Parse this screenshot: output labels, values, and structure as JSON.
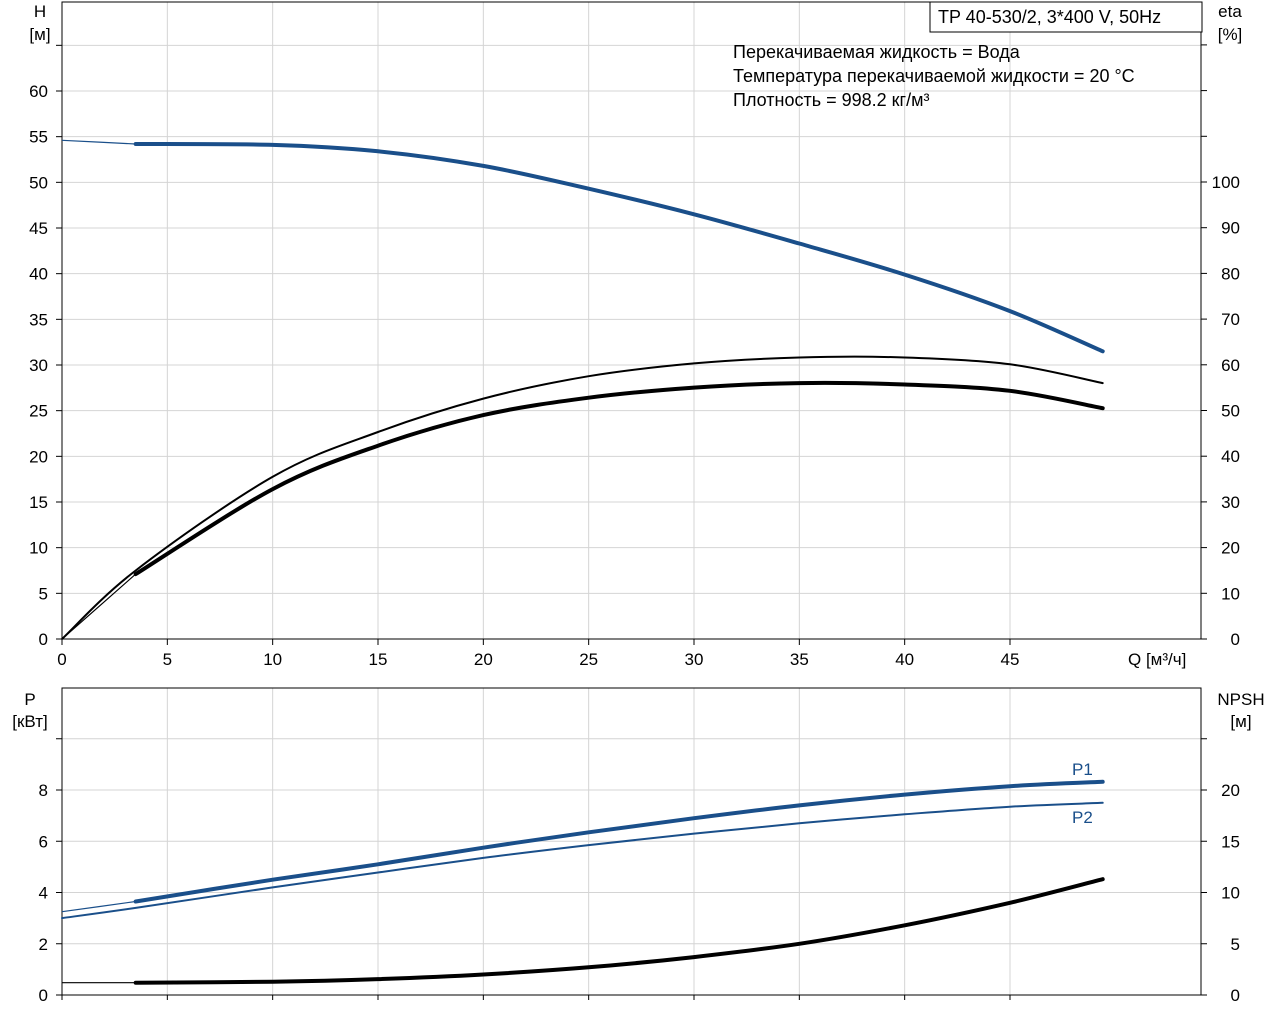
{
  "chart_data": [
    {
      "type": "line",
      "title": "TP 40-530/2, 3*400 V, 50Hz",
      "notes": [
        "Перекачиваемая жидкость = Вода",
        "Температура перекачиваемой жидкости = 20 °C",
        "Плотность = 998.2 кг/м³"
      ],
      "xlabel": "Q [м³/ч]",
      "ylabel_left_name": "H",
      "ylabel_left_unit": "[м]",
      "ylabel_right_name": "eta",
      "ylabel_right_unit": "[%]",
      "xlim": [
        0,
        50
      ],
      "ylim_left": [
        0,
        70
      ],
      "ylim_right": [
        0,
        140
      ],
      "x_ticks": [
        "0",
        "5",
        "10",
        "15",
        "20",
        "25",
        "30",
        "35",
        "40",
        "45"
      ],
      "y_left_ticks": [
        "0",
        "5",
        "10",
        "15",
        "20",
        "25",
        "30",
        "35",
        "40",
        "45",
        "50",
        "55",
        "60"
      ],
      "y_right_ticks": [
        "0",
        "10",
        "20",
        "30",
        "40",
        "50",
        "60",
        "70",
        "80",
        "90",
        "100"
      ],
      "grid": true,
      "colors": {
        "head": "#1a4f8a",
        "eta": "#000000"
      },
      "series": [
        {
          "key": "H",
          "axis": "left",
          "color": "#1a4f8a",
          "x": [
            0,
            3.5,
            10,
            15,
            20,
            25,
            30,
            35,
            40,
            45,
            49.4
          ],
          "values": [
            54.6,
            54.2,
            54.1,
            53.4,
            51.8,
            49.3,
            46.5,
            43.3,
            39.9,
            35.9,
            31.5
          ],
          "start_thin_to": 3.5
        },
        {
          "key": "eta_1",
          "axis": "right",
          "color": "#000000",
          "x": [
            0,
            3.5,
            10,
            15,
            20,
            25,
            30,
            35,
            40,
            45,
            49.4
          ],
          "values": [
            0,
            15,
            35.5,
            45.3,
            52.6,
            57.5,
            60.3,
            61.6,
            61.6,
            60.1,
            56
          ],
          "start_thin_to": 0
        },
        {
          "key": "eta_2",
          "axis": "right",
          "color": "#000000",
          "x": [
            0,
            3.5,
            10,
            15,
            20,
            25,
            30,
            35,
            40,
            45,
            49.4
          ],
          "values": [
            0,
            14.2,
            32.8,
            42.3,
            49,
            52.8,
            55,
            56,
            55.7,
            54.3,
            50.5
          ],
          "start_thin_to": 3.5
        }
      ]
    },
    {
      "type": "line",
      "xlim": [
        0,
        50
      ],
      "ylabel_left_name": "P",
      "ylabel_left_unit": "[кВт]",
      "ylabel_right_name": "NPSH",
      "ylabel_right_unit": "[м]",
      "ylim_left": [
        0,
        12
      ],
      "ylim_right": [
        0,
        30
      ],
      "y_left_ticks": [
        "0",
        "2",
        "4",
        "6",
        "8"
      ],
      "y_right_ticks": [
        "0",
        "5",
        "10",
        "15",
        "20"
      ],
      "grid": true,
      "series": [
        {
          "name": "P1",
          "axis": "left",
          "color": "#1a4f8a",
          "x": [
            0,
            3.5,
            10,
            15,
            20,
            25,
            30,
            35,
            40,
            45,
            49.4
          ],
          "values": [
            3.25,
            3.65,
            4.5,
            5.1,
            5.75,
            6.35,
            6.9,
            7.4,
            7.82,
            8.15,
            8.32
          ],
          "start_thin_to": 3.5
        },
        {
          "name": "P2",
          "axis": "left",
          "color": "#1a4f8a",
          "x": [
            0,
            3.5,
            10,
            15,
            20,
            25,
            30,
            35,
            40,
            45,
            49.4
          ],
          "values": [
            3.0,
            3.4,
            4.2,
            4.78,
            5.35,
            5.85,
            6.3,
            6.7,
            7.05,
            7.35,
            7.5
          ],
          "start_thin_to": 0
        },
        {
          "key": "NPSH",
          "axis": "right",
          "color": "#000000",
          "x": [
            0,
            3.5,
            10,
            15,
            20,
            25,
            30,
            35,
            40,
            45,
            49.4
          ],
          "values": [
            1.2,
            1.2,
            1.3,
            1.55,
            2.0,
            2.7,
            3.7,
            5.0,
            6.8,
            9.0,
            11.3
          ],
          "start_thin_to": 3.5
        }
      ]
    }
  ]
}
